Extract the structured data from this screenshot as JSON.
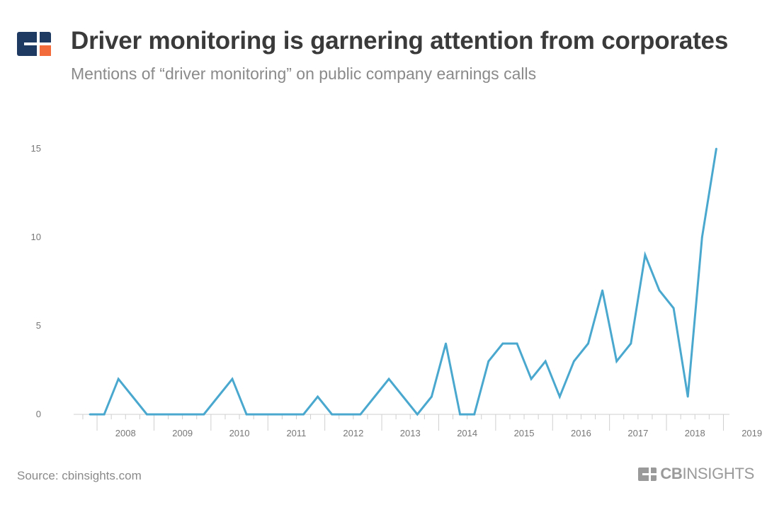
{
  "header": {
    "title": "Driver monitoring is garnering attention from corporates",
    "subtitle": "Mentions of “driver monitoring” on public company earnings calls"
  },
  "footer": {
    "source": "Source: cbinsights.com",
    "brand_bold": "CB",
    "brand_regular": "INSIGHTS"
  },
  "icons": {
    "logo": "cb-insights-logo-icon",
    "brand_mark": "cb-insights-mark-icon"
  },
  "colors": {
    "line": "#4aa8cf",
    "logo_navy": "#1e3a63",
    "logo_orange": "#f26b3a",
    "axis": "#cfcfcf",
    "tick_text": "#777777",
    "gray_text": "#8a8a8a"
  },
  "chart_data": {
    "type": "line",
    "title": "Driver monitoring is garnering attention from corporates",
    "subtitle": "Mentions of “driver monitoring” on public company earnings calls",
    "xlabel": "",
    "ylabel": "",
    "x_tick_labels": [
      "2008",
      "2009",
      "2010",
      "2011",
      "2012",
      "2013",
      "2014",
      "2015",
      "2016",
      "2017",
      "2018",
      "2019"
    ],
    "y_ticks": [
      0,
      5,
      10,
      15
    ],
    "ylim": [
      0,
      15
    ],
    "grid": false,
    "legend": "none",
    "x": [
      "2007-Q4",
      "2008-Q1",
      "2008-Q2",
      "2008-Q3",
      "2008-Q4",
      "2009-Q1",
      "2009-Q2",
      "2009-Q3",
      "2009-Q4",
      "2010-Q1",
      "2010-Q2",
      "2010-Q3",
      "2010-Q4",
      "2011-Q1",
      "2011-Q2",
      "2011-Q3",
      "2011-Q4",
      "2012-Q1",
      "2012-Q2",
      "2012-Q3",
      "2012-Q4",
      "2013-Q1",
      "2013-Q2",
      "2013-Q3",
      "2013-Q4",
      "2014-Q1",
      "2014-Q2",
      "2014-Q3",
      "2014-Q4",
      "2015-Q1",
      "2015-Q2",
      "2015-Q3",
      "2015-Q4",
      "2016-Q1",
      "2016-Q2",
      "2016-Q3",
      "2016-Q4",
      "2017-Q1",
      "2017-Q2",
      "2017-Q3",
      "2017-Q4",
      "2018-Q1",
      "2018-Q2",
      "2018-Q3",
      "2018-Q4"
    ],
    "series": [
      {
        "values": [
          0,
          0,
          2,
          1,
          0,
          0,
          0,
          0,
          0,
          1,
          2,
          0,
          0,
          0,
          0,
          0,
          1,
          0,
          0,
          0,
          1,
          2,
          1,
          0,
          1,
          4,
          0,
          0,
          3,
          4,
          4,
          2,
          3,
          1,
          3,
          4,
          7,
          3,
          4,
          9,
          7,
          6,
          1,
          10,
          15
        ]
      }
    ]
  }
}
